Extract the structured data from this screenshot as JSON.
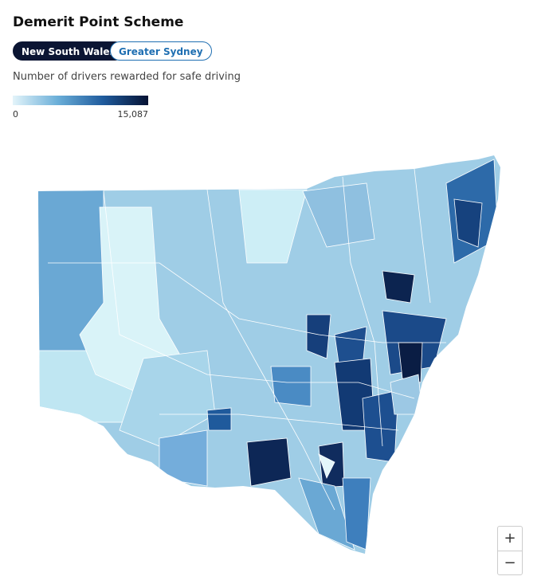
{
  "header": {
    "title": "Demerit Point Scheme"
  },
  "tabs": [
    "New South Wales",
    "Greater Sydney"
  ],
  "legend": {
    "title": "Number of drivers rewarded for safe driving",
    "min_label": "0",
    "max_label": "15,087"
  },
  "zoom": {
    "in": "+",
    "out": "−"
  }
}
